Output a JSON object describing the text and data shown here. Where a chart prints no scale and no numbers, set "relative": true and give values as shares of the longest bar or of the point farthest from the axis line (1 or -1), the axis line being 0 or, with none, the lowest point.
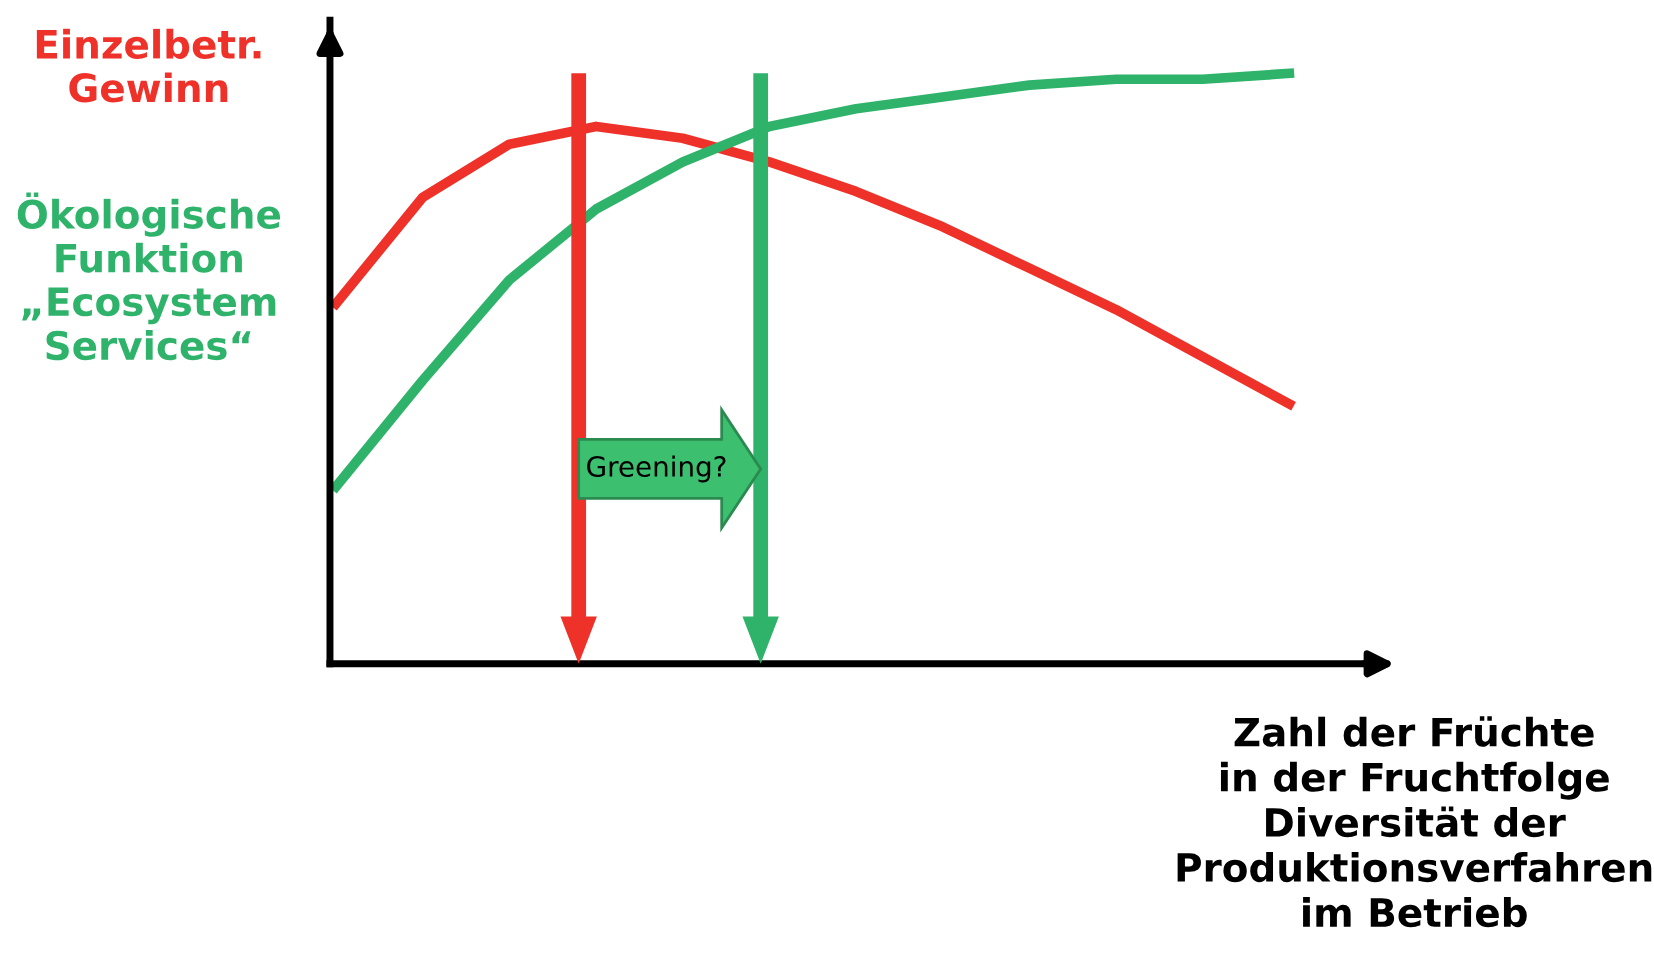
{
  "chart_data": {
    "type": "line",
    "relative": true,
    "xlabel": "Zahl der Früchte\nin der Fruchtfolge\nDiversität der\nProduktionsverfahren\nim Betrieb",
    "categories": [
      null,
      null,
      null,
      null,
      null,
      null,
      null,
      null,
      null,
      null,
      null,
      null
    ],
    "series": [
      {
        "name": "Einzelbetr.\nGewinn",
        "color": "#ee3129",
        "values": [
          0.61,
          0.79,
          0.88,
          0.91,
          0.89,
          0.85,
          0.8,
          0.74,
          0.67,
          0.6,
          0.52,
          0.44
        ]
      },
      {
        "name": "Ökologische\nFunktion\n„Ecosystem\nServices“",
        "color": "#2fb36b",
        "values": [
          0.3,
          0.48,
          0.65,
          0.77,
          0.85,
          0.91,
          0.94,
          0.96,
          0.98,
          0.99,
          0.99,
          1.0
        ]
      }
    ],
    "annotations": [
      "Greening?"
    ],
    "grid": false,
    "marker": "none",
    "line_style": "solid"
  }
}
